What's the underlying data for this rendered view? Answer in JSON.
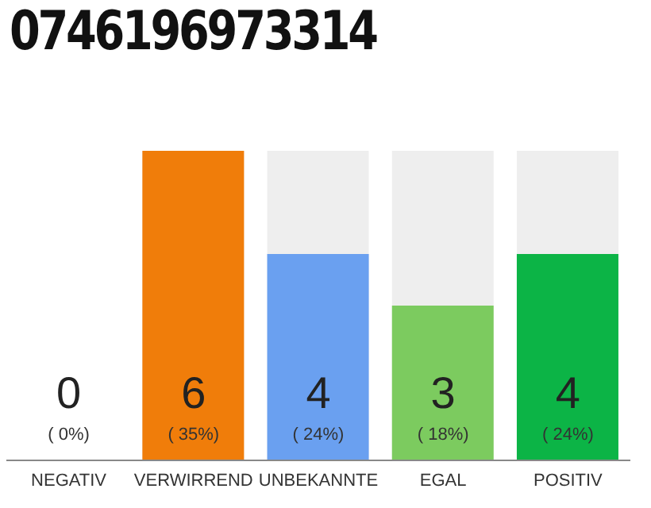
{
  "chart_data": {
    "type": "bar",
    "title": "0746196973314",
    "categories": [
      "NEGATIV",
      "VERWIRREND",
      "UNBEKANNTE",
      "EGAL",
      "POSITIV"
    ],
    "values": [
      0,
      6,
      4,
      3,
      4
    ],
    "colors": [
      "#e6e6e6",
      "#f07d0a",
      "#6aa0f0",
      "#7ccb5f",
      "#0cb446"
    ],
    "tick_labels": "x",
    "data_labels": true,
    "annotations": [
      "( 0%)",
      "( 35%)",
      "( 24%)",
      "( 18%)",
      "( 24%)"
    ]
  }
}
